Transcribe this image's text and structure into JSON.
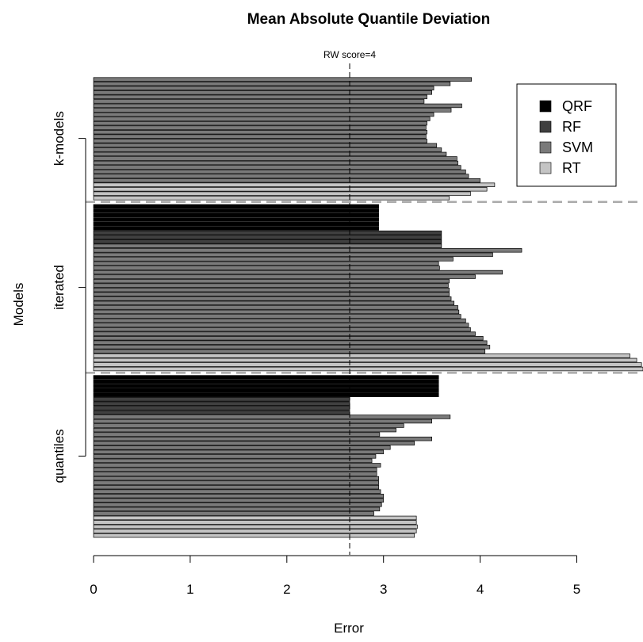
{
  "chart_data": {
    "type": "bar",
    "orientation": "horizontal",
    "title": "Mean Absolute Quantile Deviation",
    "xlabel": "Error",
    "ylabel": "Models",
    "xlim": [
      0,
      5.7
    ],
    "xticks": [
      0,
      1,
      2,
      3,
      4,
      5
    ],
    "reference_line": {
      "value": 2.65,
      "label": "RW score=4"
    },
    "groups": [
      "quantiles",
      "iterated",
      "k-models"
    ],
    "legend": {
      "position": "top-right",
      "entries": [
        {
          "name": "QRF",
          "color": "#000000"
        },
        {
          "name": "RF",
          "color": "#404040"
        },
        {
          "name": "SVM",
          "color": "#7a7a7a"
        },
        {
          "name": "RT",
          "color": "#c4c4c4"
        }
      ]
    },
    "series": [
      {
        "group": "quantiles",
        "model": "RT",
        "color": "#c4c4c4",
        "values": [
          3.32,
          3.34,
          3.35,
          3.34,
          3.34
        ]
      },
      {
        "group": "quantiles",
        "model": "SVM",
        "color": "#7a7a7a",
        "values": [
          2.9,
          2.96,
          2.98,
          3.0,
          3.0,
          2.97,
          2.95,
          2.95,
          2.95,
          2.93,
          2.93,
          2.97,
          2.88,
          2.92,
          3.0,
          3.07,
          3.32,
          3.5,
          2.96,
          3.13,
          3.21,
          3.5,
          3.69
        ]
      },
      {
        "group": "quantiles",
        "model": "RF",
        "color": "#404040",
        "values": [
          2.65,
          2.65,
          2.65,
          2.65
        ]
      },
      {
        "group": "quantiles",
        "model": "QRF",
        "color": "#000000",
        "values": [
          3.57,
          3.57,
          3.57,
          3.57,
          3.57
        ]
      },
      {
        "group": "iterated",
        "model": "RT",
        "color": "#c4c4c4",
        "values": [
          5.72,
          5.67,
          5.62,
          5.55
        ]
      },
      {
        "group": "iterated",
        "model": "SVM",
        "color": "#7a7a7a",
        "values": [
          4.05,
          4.1,
          4.07,
          4.03,
          3.95,
          3.9,
          3.88,
          3.85,
          3.8,
          3.78,
          3.77,
          3.73,
          3.7,
          3.68,
          3.68,
          3.67,
          3.68,
          3.95,
          4.23,
          3.58,
          3.57,
          3.72,
          4.13,
          4.43,
          3.6
        ]
      },
      {
        "group": "iterated",
        "model": "RF",
        "color": "#404040",
        "values": [
          3.6,
          3.6,
          3.6
        ]
      },
      {
        "group": "iterated",
        "model": "QRF",
        "color": "#000000",
        "values": [
          2.95,
          2.95,
          2.95,
          2.95,
          2.95,
          2.95
        ]
      },
      {
        "group": "k-models",
        "model": "RT",
        "color": "#c4c4c4",
        "values": [
          3.68,
          3.9,
          4.07,
          4.15
        ]
      },
      {
        "group": "k-models",
        "model": "SVM",
        "color": "#7a7a7a",
        "values": [
          4.0,
          3.88,
          3.85,
          3.8,
          3.77,
          3.76,
          3.65,
          3.6,
          3.55,
          3.45,
          3.44,
          3.45,
          3.44,
          3.45,
          3.48,
          3.52,
          3.7,
          3.81,
          3.42,
          3.45,
          3.5,
          3.52,
          3.69,
          3.91
        ]
      }
    ]
  }
}
